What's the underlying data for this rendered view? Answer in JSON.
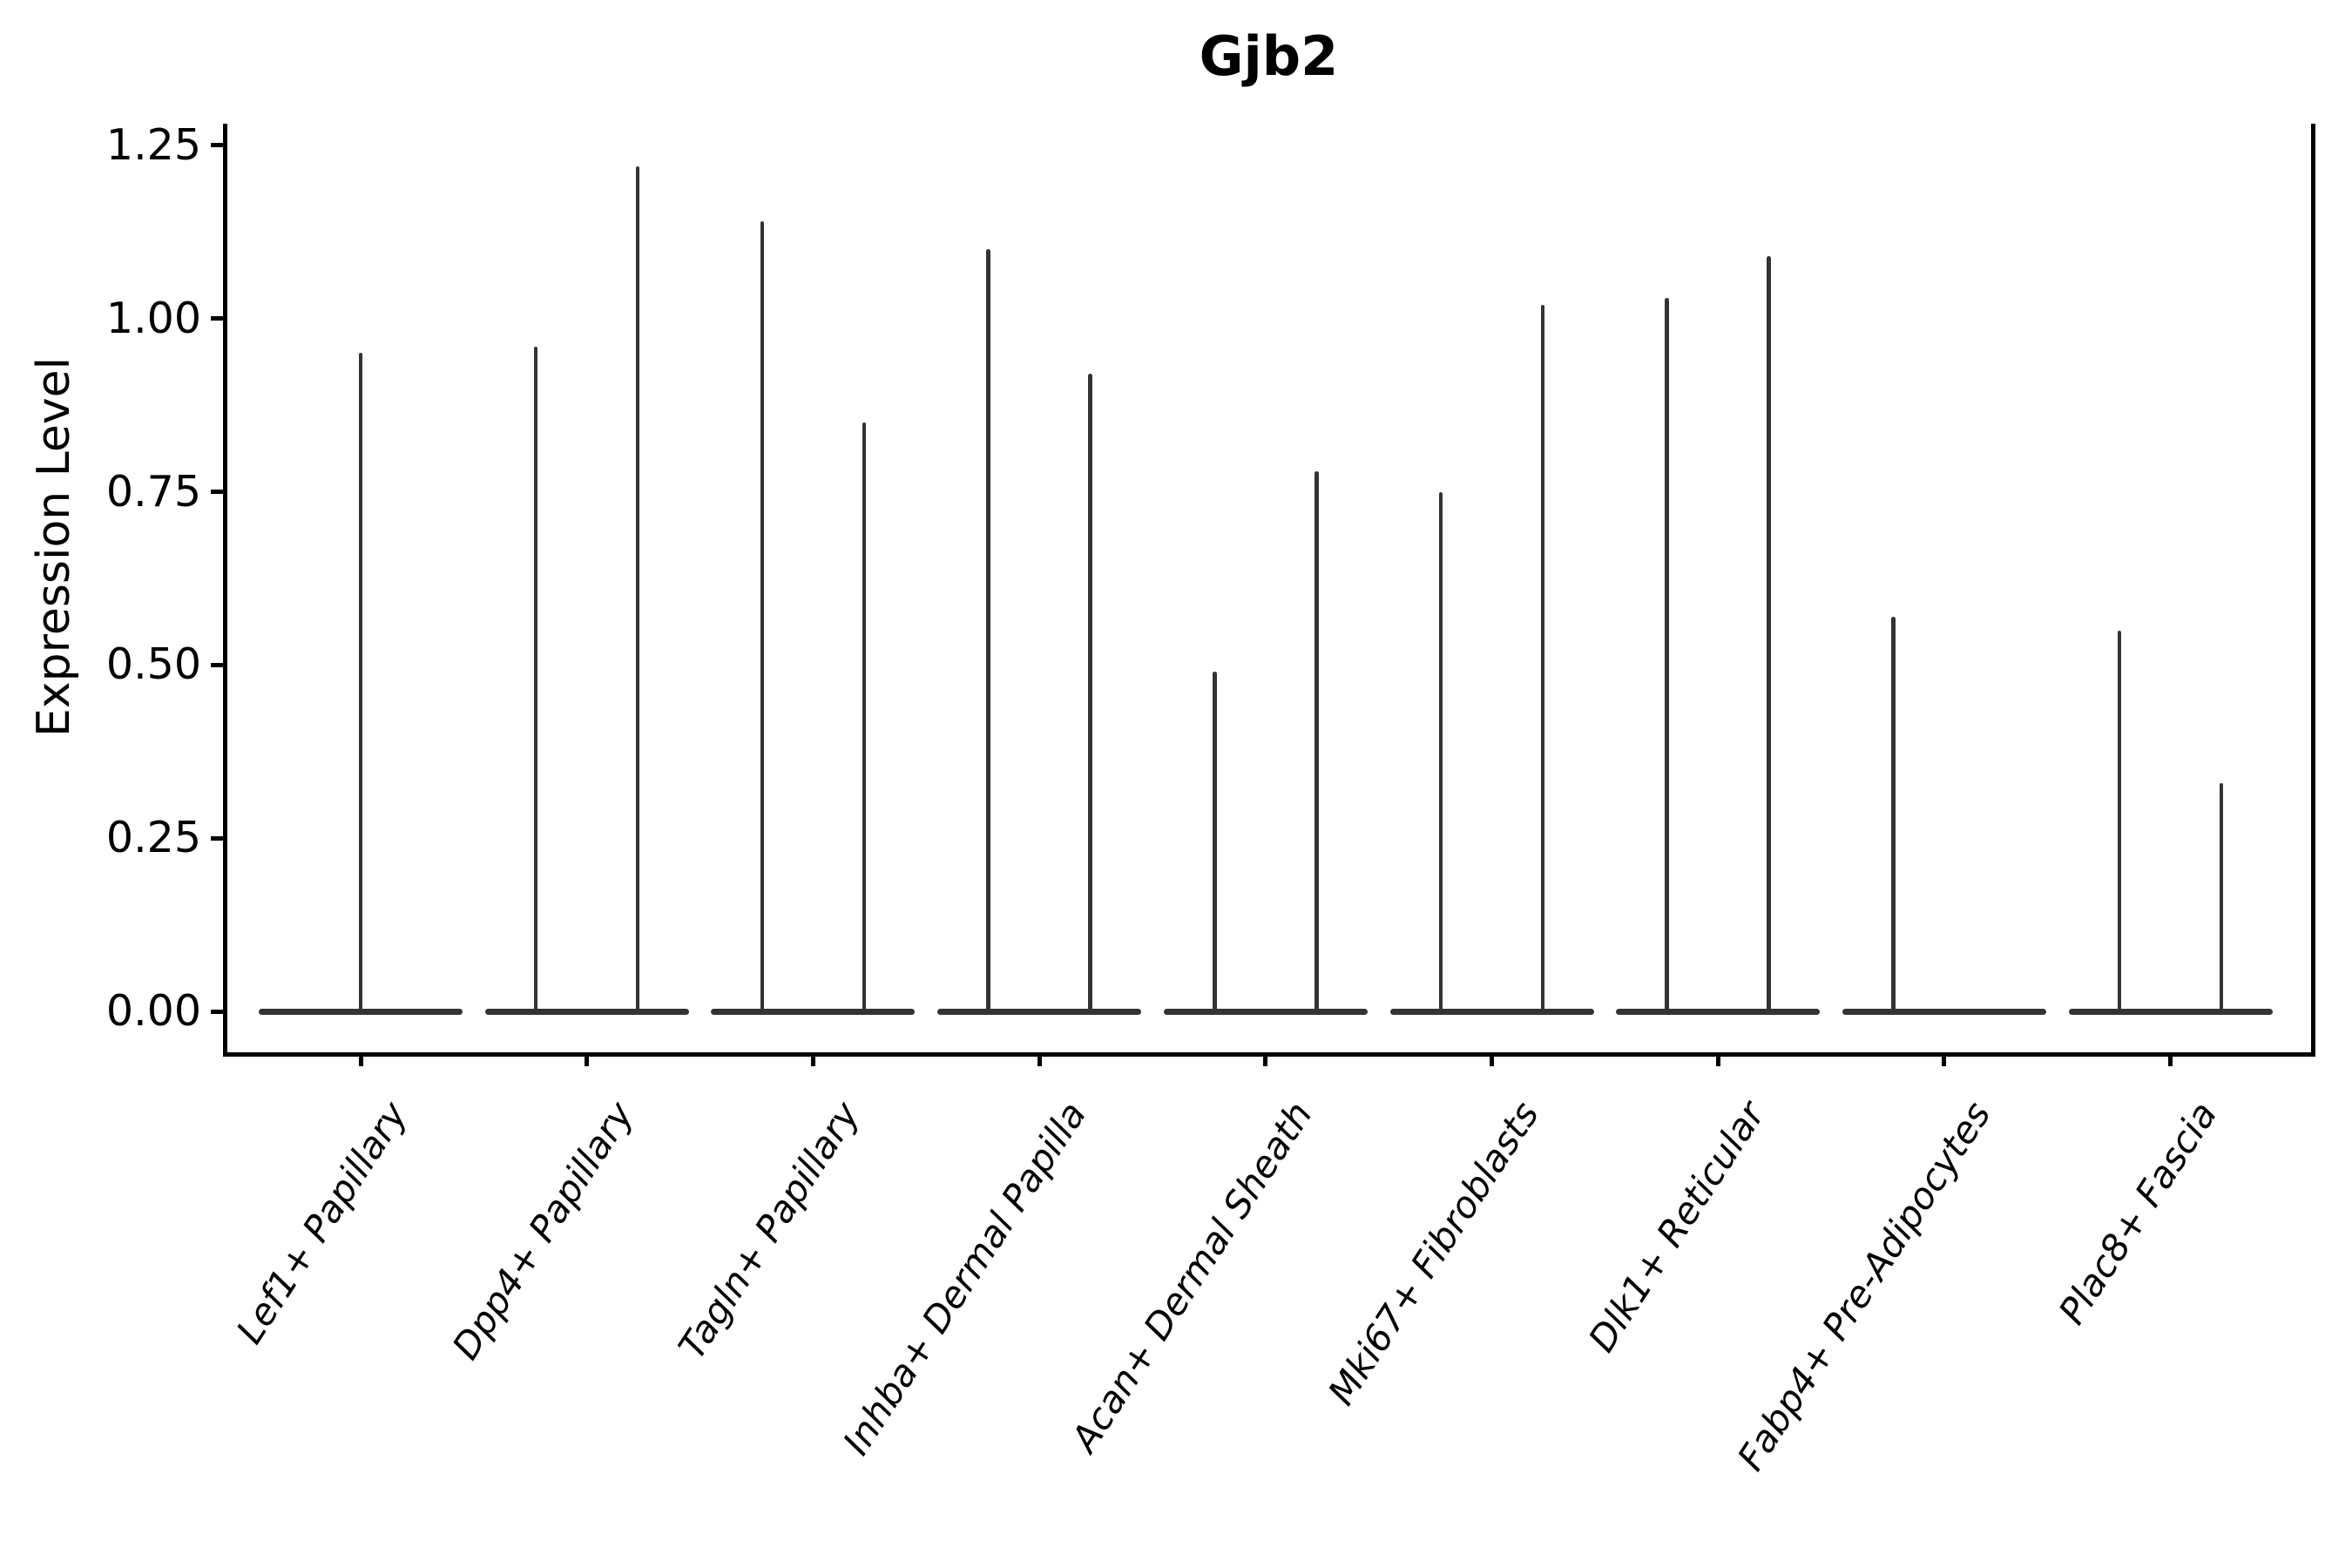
{
  "title": "Gjb2",
  "ylabel": "Expression Level",
  "chart_data": {
    "type": "violin",
    "title": "Gjb2",
    "xlabel": "",
    "ylabel": "Expression Level",
    "ylim": [
      -0.06,
      1.28
    ],
    "grid": false,
    "legend": "none",
    "yticks": [
      1.25,
      1.0,
      0.75,
      0.5,
      0.25,
      0.0
    ],
    "ytick_labels": [
      "1.25",
      "1.00",
      "0.75",
      "0.50",
      "0.25",
      "0.00"
    ],
    "categories": [
      "Lef1+ Papillary",
      "Dpp4+ Papillary",
      "Tagln+ Papillary",
      "Inhba+ Dermal Papilla",
      "Acan+ Dermal Sheath",
      "Mki67+ Fibroblasts",
      "Dlk1+ Reticular",
      "Fabp4+ Pre-Adipocytes",
      "Plac8+ Fascia"
    ],
    "baseline_value": 0.0,
    "violins": [
      {
        "category": "Lef1+ Papillary",
        "spikes": [
          {
            "offset": "center",
            "max": 0.95
          }
        ]
      },
      {
        "category": "Dpp4+ Papillary",
        "spikes": [
          {
            "offset": "left",
            "max": 0.96
          },
          {
            "offset": "right",
            "max": 1.22
          }
        ]
      },
      {
        "category": "Tagln+ Papillary",
        "spikes": [
          {
            "offset": "left",
            "max": 1.14
          },
          {
            "offset": "right",
            "max": 0.85
          }
        ]
      },
      {
        "category": "Inhba+ Dermal Papilla",
        "spikes": [
          {
            "offset": "left",
            "max": 1.1
          },
          {
            "offset": "right",
            "max": 0.92
          }
        ]
      },
      {
        "category": "Acan+ Dermal Sheath",
        "spikes": [
          {
            "offset": "left",
            "max": 0.49
          },
          {
            "offset": "right",
            "max": 0.78
          }
        ]
      },
      {
        "category": "Mki67+ Fibroblasts",
        "spikes": [
          {
            "offset": "left",
            "max": 0.75
          },
          {
            "offset": "right",
            "max": 1.02
          }
        ]
      },
      {
        "category": "Dlk1+ Reticular",
        "spikes": [
          {
            "offset": "left",
            "max": 1.03
          },
          {
            "offset": "right",
            "max": 1.09
          }
        ]
      },
      {
        "category": "Fabp4+ Pre-Adipocytes",
        "spikes": [
          {
            "offset": "left",
            "max": 0.57
          }
        ]
      },
      {
        "category": "Plac8+ Fascia",
        "spikes": [
          {
            "offset": "left",
            "max": 0.55
          },
          {
            "offset": "right",
            "max": 0.33
          }
        ]
      }
    ],
    "colors": {
      "violin": "#333333",
      "spine": "#000000",
      "text": "#000000",
      "background": "#ffffff"
    }
  }
}
